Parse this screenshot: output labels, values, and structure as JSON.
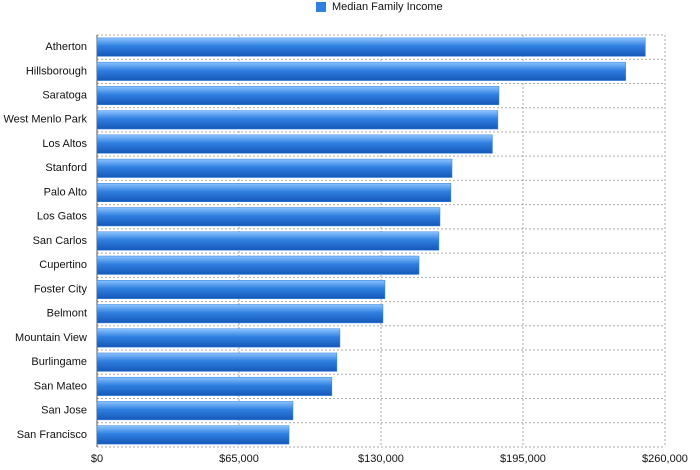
{
  "chart_data": {
    "type": "hbar",
    "categories": [
      "Atherton",
      "Hillsborough",
      "Saratoga",
      "West Menlo Park",
      "Los Altos",
      "Stanford",
      "Palo Alto",
      "Los Gatos",
      "San Carlos",
      "Cupertino",
      "Foster City",
      "Belmont",
      "Mountain View",
      "Burlingame",
      "San Mateo",
      "San Jose",
      "San Francisco"
    ],
    "series": [
      {
        "name": "Median Family Income",
        "color": "#2f7fe0",
        "values": [
          251000,
          242000,
          184000,
          183500,
          181000,
          162500,
          162000,
          157000,
          156500,
          147400,
          131800,
          130900,
          111200,
          109800,
          107500,
          89700,
          87900
        ]
      }
    ],
    "xlim": [
      0,
      260000
    ],
    "xticks": [
      {
        "value": 0,
        "label": "$0"
      },
      {
        "value": 65000,
        "label": "$65,000"
      },
      {
        "value": 130000,
        "label": "$130,000"
      },
      {
        "value": 195000,
        "label": "$195,000"
      },
      {
        "value": 260000,
        "label": "$260,000"
      }
    ],
    "grid": true,
    "legend": "top"
  }
}
